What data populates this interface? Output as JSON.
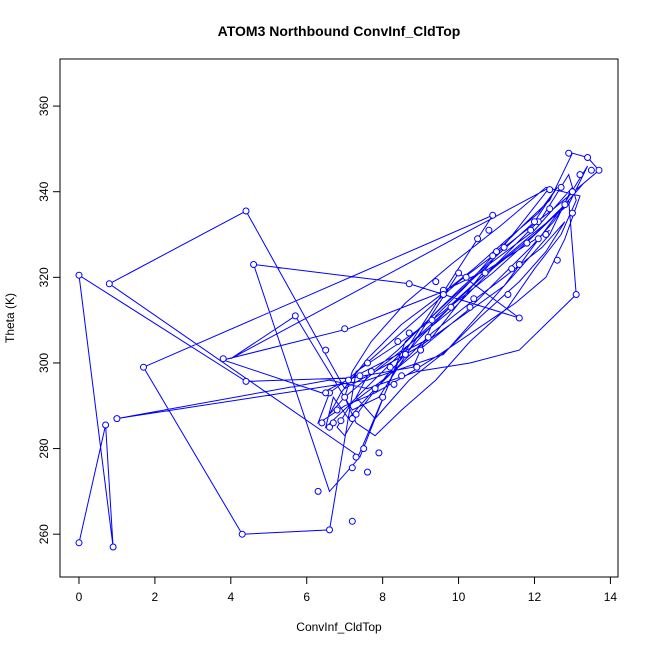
{
  "chart_data": {
    "type": "scatter",
    "title": "ATOM3 Northbound ConvInf_CldTop",
    "xlabel": "ConvInf_CldTop",
    "ylabel": "Theta (K)",
    "xlim": [
      -0.5,
      14.2
    ],
    "ylim": [
      250,
      371
    ],
    "xticks": [
      0,
      2,
      4,
      6,
      8,
      10,
      12,
      14
    ],
    "yticks": [
      260,
      280,
      300,
      320,
      340,
      360
    ],
    "xtick_labels": [
      "0",
      "2",
      "4",
      "6",
      "8",
      "10",
      "12",
      "14"
    ],
    "ytick_labels": [
      "260",
      "280",
      "300",
      "320",
      "340",
      "360"
    ],
    "grid": false,
    "line_color": "#0000ff",
    "point_color": "#0000ff",
    "series": [
      {
        "draw": "line+points",
        "x": [
          0.0,
          0.7,
          0.9,
          0.0,
          4.4,
          7.2,
          8.8,
          9.4,
          10.2,
          11.0,
          11.8,
          12.4,
          13.0,
          13.4,
          13.7,
          12.5,
          11.2,
          10.0,
          9.0,
          8.1,
          7.2,
          6.6,
          6.3,
          6.5,
          7.0,
          7.8,
          8.6,
          9.5,
          10.5,
          11.5,
          12.3,
          12.8,
          13.2,
          12.3,
          11.1,
          9.8,
          8.6,
          7.7,
          7.2,
          7.0,
          7.3,
          7.8,
          8.5,
          9.4,
          10.3,
          11.3,
          12.0,
          12.7,
          13.1,
          12.9,
          12.2,
          11.1,
          10.0,
          9.0,
          8.1,
          7.4,
          7.0,
          6.8,
          7.2,
          8.0,
          8.9,
          9.9,
          10.9,
          11.9,
          12.6,
          13.3,
          12.8,
          12.0,
          10.9,
          9.9,
          8.8,
          7.8,
          7.0,
          6.6,
          6.9,
          7.6,
          8.5,
          9.4,
          10.4,
          11.3,
          12.1,
          12.6,
          12.0,
          11.0,
          10.0,
          9.2,
          8.4,
          7.6,
          7.3,
          7.8,
          8.7,
          9.7,
          10.6,
          11.6,
          12.3,
          12.8,
          12.2,
          11.2,
          10.3,
          9.3,
          8.5,
          7.7,
          7.1,
          6.7,
          6.5,
          7.1,
          8.0,
          9.1,
          10.2,
          11.1,
          11.9,
          12.5,
          12.9,
          13.1,
          11.6,
          10.3,
          8.9,
          7.6,
          6.6,
          1.0,
          7.6,
          9.6,
          12.4,
          13.0,
          12.0,
          10.8,
          9.8,
          8.6,
          7.4,
          0.8,
          4.4,
          7.0,
          9.0,
          11.2,
          12.7,
          13.4,
          12.9,
          11.8,
          10.6,
          9.6,
          8.5,
          7.3,
          6.6,
          4.3,
          1.7,
          10.9,
          8.4,
          7.3,
          6.6,
          4.6,
          8.7,
          11.6,
          10.0,
          7.9,
          7.2,
          5.7,
          4.0,
          12.4,
          9.3,
          6.4,
          3.8,
          7.1,
          9.4,
          10.8,
          12.4
        ],
        "y": [
          258,
          285.5,
          257,
          320.5,
          295.7,
          296.5,
          299,
          311,
          318,
          326,
          333,
          338,
          349,
          348,
          345,
          336,
          327,
          319,
          311,
          304,
          297,
          293,
          286,
          287,
          290,
          293,
          297,
          302,
          308,
          314,
          320,
          329,
          339,
          341,
          332,
          323,
          314,
          305,
          298,
          292,
          286,
          283,
          289,
          296,
          305,
          313,
          322,
          330,
          338,
          344,
          334,
          324,
          315,
          306,
          297,
          289,
          283,
          285,
          291,
          298,
          306,
          314,
          321,
          329,
          335,
          342,
          337,
          330,
          322,
          313,
          305,
          298,
          292,
          288,
          293,
          301,
          309,
          315,
          322,
          329,
          335,
          341,
          333,
          325,
          317,
          310,
          303,
          297,
          292,
          287,
          296,
          303,
          311,
          319,
          326,
          333,
          327,
          320,
          314,
          307,
          300,
          293,
          287,
          292,
          285,
          290,
          296,
          304,
          312,
          320,
          327,
          333,
          338,
          316,
          303,
          300,
          298,
          294,
          296,
          287,
          296,
          302,
          330,
          341,
          331,
          323,
          315,
          305,
          278,
          318.5,
          335.5,
          294,
          304,
          318,
          336,
          346,
          337,
          329,
          320,
          312,
          305,
          298,
          261,
          260,
          299,
          334.5,
          300,
          277,
          270,
          323,
          318.5,
          310.5,
          321,
          292,
          289,
          311,
          301,
          341,
          306,
          293,
          300.7,
          308,
          316,
          322,
          331
        ],
        "points_x": [
          0.0,
          0.7,
          0.9,
          0.0,
          0.8,
          1.0,
          1.7,
          3.8,
          4.3,
          4.4,
          4.4,
          4.6,
          5.7,
          6.3,
          6.4,
          6.6,
          6.6,
          6.6,
          6.7,
          6.9,
          7.0,
          7.2,
          7.2,
          7.3,
          7.5,
          7.6,
          7.6,
          7.9,
          8.2,
          8.4,
          8.7,
          8.9,
          9.3,
          9.6,
          10.0,
          10.3,
          10.5,
          10.9,
          11.0,
          11.3,
          11.6,
          11.6,
          11.9,
          12.1,
          12.4,
          12.6,
          12.7,
          12.9,
          13.0,
          13.1,
          13.2,
          13.4,
          13.5,
          13.7,
          12.4,
          12.1,
          11.2,
          10.8,
          10.2,
          9.4,
          9.0,
          8.5,
          8.0,
          7.8,
          7.4,
          7.0,
          6.8,
          6.5,
          7.3,
          7.7,
          8.3,
          8.6,
          9.2,
          9.8,
          10.4,
          10.9,
          11.4,
          12.0,
          12.3,
          12.8,
          13.0,
          7.2,
          6.5,
          7.1,
          8.7,
          9.6,
          10.7,
          11.8
        ],
        "points_y": [
          258,
          285.5,
          257,
          320.5,
          318.5,
          287,
          299,
          301,
          260,
          295.7,
          335.5,
          323,
          311,
          270,
          286,
          261,
          293,
          285,
          286,
          286.5,
          308,
          263,
          275.5,
          278,
          280,
          274.5,
          300,
          279,
          299,
          305,
          318.5,
          299,
          310,
          317,
          321,
          313,
          329,
          334.5,
          326,
          316,
          310.5,
          323,
          331,
          329,
          336,
          324,
          341,
          349,
          335,
          316,
          344,
          348,
          345,
          345,
          340.5,
          333,
          327,
          331,
          320,
          319,
          303,
          297,
          292,
          294,
          297,
          292,
          289,
          293,
          288,
          298,
          295,
          302,
          306,
          313,
          315,
          325,
          322,
          333,
          330,
          337,
          340,
          287,
          303,
          296,
          307,
          316,
          321,
          328
        ]
      }
    ]
  }
}
